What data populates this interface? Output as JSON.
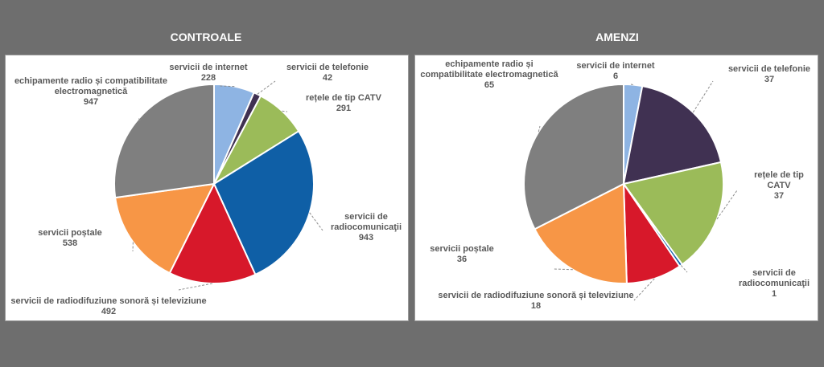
{
  "chart_data": [
    {
      "type": "pie",
      "title": "CONTROALE",
      "slices": [
        {
          "name": "servicii de internet",
          "lines": [
            "servicii de internet"
          ],
          "value": 228,
          "color": "#8eb4e3"
        },
        {
          "name": "servicii de telefonie",
          "lines": [
            "servicii de telefonie"
          ],
          "value": 42,
          "color": "#403152"
        },
        {
          "name": "rețele de tip CATV",
          "lines": [
            "rețele de tip CATV"
          ],
          "value": 291,
          "color": "#9bbb59"
        },
        {
          "name": "servicii de radiocomunicaţii",
          "lines": [
            "servicii de",
            "radiocomunicaţii"
          ],
          "value": 943,
          "color": "#0f5fa6"
        },
        {
          "name": "servicii de radiodifuziune sonoră și televiziune",
          "lines": [
            "servicii de radiodifuziune sonoră și televiziune"
          ],
          "value": 492,
          "color": "#d7182a"
        },
        {
          "name": "servicii poștale",
          "lines": [
            "servicii poștale"
          ],
          "value": 538,
          "color": "#f79646"
        },
        {
          "name": "echipamente radio și compatibilitate electromagnetică",
          "lines": [
            "echipamente radio și compatibilitate",
            "electromagnetică"
          ],
          "value": 947,
          "color": "#7f7f7f"
        }
      ]
    },
    {
      "type": "pie",
      "title": "AMENZI",
      "slices": [
        {
          "name": "servicii de internet",
          "lines": [
            "servicii de internet"
          ],
          "value": 6,
          "color": "#8eb4e3"
        },
        {
          "name": "servicii de telefonie",
          "lines": [
            "servicii de telefonie"
          ],
          "value": 37,
          "color": "#403152"
        },
        {
          "name": "rețele de tip CATV",
          "lines": [
            "rețele de tip",
            "CATV"
          ],
          "value": 37,
          "color": "#9bbb59"
        },
        {
          "name": "servicii de radiocomunicaţii",
          "lines": [
            "servicii de",
            "radiocomunicaţii"
          ],
          "value": 1,
          "color": "#0f5fa6"
        },
        {
          "name": "servicii de radiodifuziune sonoră și televiziune",
          "lines": [
            "servicii de radiodifuziune sonoră și televiziune"
          ],
          "value": 18,
          "color": "#d7182a"
        },
        {
          "name": "servicii poștale",
          "lines": [
            "servicii poștale"
          ],
          "value": 36,
          "color": "#f79646"
        },
        {
          "name": "echipamente radio și compatibilitate electromagnetică",
          "lines": [
            "echipamente radio și",
            "compatibilitate electromagnetică"
          ],
          "value": 65,
          "color": "#7f7f7f"
        }
      ]
    }
  ]
}
